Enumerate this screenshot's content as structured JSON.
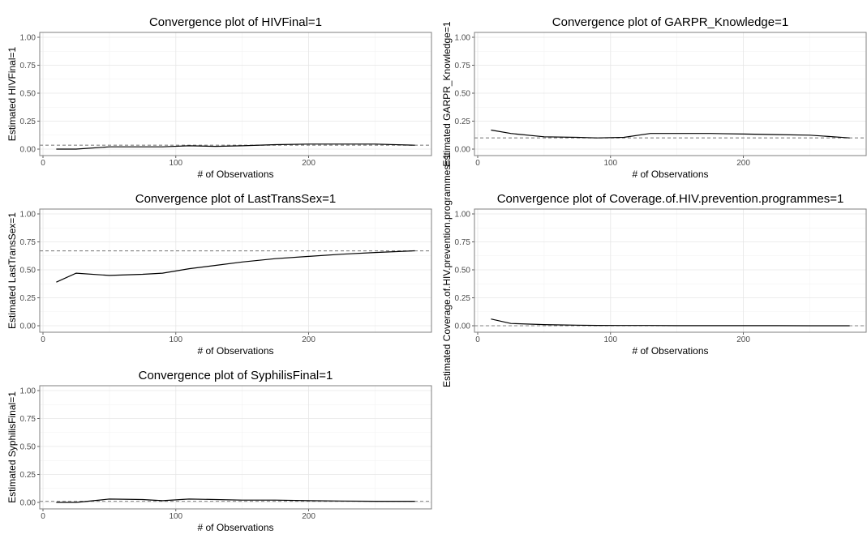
{
  "chart_data": [
    {
      "type": "line",
      "title": "Convergence plot of HIVFinal=1",
      "xlabel": "# of Observations",
      "ylabel": "Estimated HIVFinal=1",
      "xlim": [
        0,
        290
      ],
      "ylim": [
        0,
        1.0
      ],
      "xticks": [
        "0",
        "100",
        "200"
      ],
      "yticks": [
        "0.00",
        "0.25",
        "0.50",
        "0.75",
        "1.00"
      ],
      "reference": 0.035,
      "x": [
        10,
        25,
        50,
        75,
        90,
        110,
        130,
        150,
        175,
        200,
        225,
        250,
        280
      ],
      "values": [
        0.0,
        0.0,
        0.02,
        0.02,
        0.02,
        0.03,
        0.025,
        0.03,
        0.04,
        0.045,
        0.045,
        0.045,
        0.035
      ]
    },
    {
      "type": "line",
      "title": "Convergence plot of GARPR_Knowledge=1",
      "xlabel": "# of Observations",
      "ylabel": "Estimated GARPR_Knowledge=1",
      "xlim": [
        0,
        290
      ],
      "ylim": [
        0,
        1.0
      ],
      "xticks": [
        "0",
        "100",
        "200"
      ],
      "yticks": [
        "0.00",
        "0.25",
        "0.50",
        "0.75",
        "1.00"
      ],
      "reference": 0.1,
      "x": [
        10,
        25,
        50,
        75,
        90,
        110,
        130,
        150,
        175,
        200,
        225,
        250,
        280
      ],
      "values": [
        0.17,
        0.14,
        0.11,
        0.105,
        0.1,
        0.105,
        0.14,
        0.14,
        0.14,
        0.135,
        0.13,
        0.125,
        0.1
      ]
    },
    {
      "type": "line",
      "title": "Convergence plot of LastTransSex=1",
      "xlabel": "# of Observations",
      "ylabel": "Estimated LastTransSex=1",
      "xlim": [
        0,
        290
      ],
      "ylim": [
        0,
        1.0
      ],
      "xticks": [
        "0",
        "100",
        "200"
      ],
      "yticks": [
        "0.00",
        "0.25",
        "0.50",
        "0.75",
        "1.00"
      ],
      "reference": 0.67,
      "x": [
        10,
        25,
        50,
        75,
        90,
        110,
        130,
        150,
        175,
        200,
        225,
        250,
        280
      ],
      "values": [
        0.39,
        0.47,
        0.45,
        0.46,
        0.47,
        0.51,
        0.54,
        0.57,
        0.6,
        0.62,
        0.64,
        0.655,
        0.67
      ]
    },
    {
      "type": "line",
      "title": "Convergence plot of Coverage.of.HIV.prevention.programmes=1",
      "xlabel": "# of Observations",
      "ylabel": "Estimated Coverage.of.HIV.prevention.programmes=1",
      "xlim": [
        0,
        290
      ],
      "ylim": [
        0,
        1.0
      ],
      "xticks": [
        "0",
        "100",
        "200"
      ],
      "yticks": [
        "0.00",
        "0.25",
        "0.50",
        "0.75",
        "1.00"
      ],
      "reference": 0.0,
      "x": [
        10,
        25,
        50,
        75,
        90,
        110,
        130,
        150,
        175,
        200,
        225,
        250,
        280
      ],
      "values": [
        0.06,
        0.02,
        0.01,
        0.005,
        0.003,
        0.002,
        0.002,
        0.001,
        0.001,
        0.001,
        0.001,
        0.0,
        0.0
      ]
    },
    {
      "type": "line",
      "title": "Convergence plot of SyphilisFinal=1",
      "xlabel": "# of Observations",
      "ylabel": "Estimated SyphilisFinal=1",
      "xlim": [
        0,
        290
      ],
      "ylim": [
        0,
        1.0
      ],
      "xticks": [
        "0",
        "100",
        "200"
      ],
      "yticks": [
        "0.00",
        "0.25",
        "0.50",
        "0.75",
        "1.00"
      ],
      "reference": 0.01,
      "x": [
        10,
        25,
        50,
        75,
        90,
        110,
        130,
        150,
        175,
        200,
        225,
        250,
        280
      ],
      "values": [
        0.0,
        0.0,
        0.03,
        0.025,
        0.015,
        0.03,
        0.025,
        0.02,
        0.02,
        0.015,
        0.012,
        0.01,
        0.01
      ]
    }
  ]
}
